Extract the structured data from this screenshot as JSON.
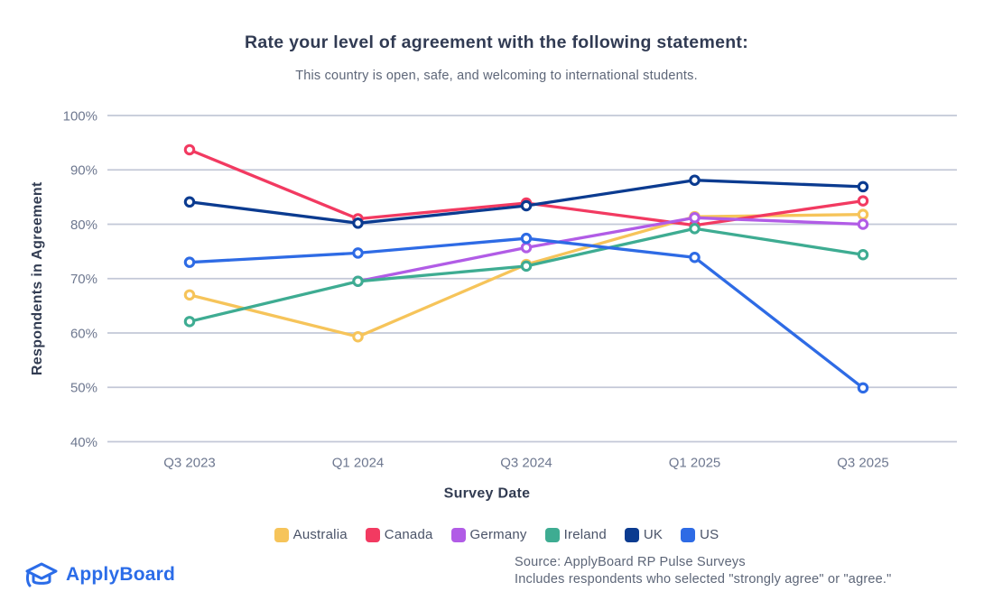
{
  "title": "Rate your level of agreement with the following statement:",
  "subtitle": "This country is open, safe, and welcoming to international students.",
  "chart_data": {
    "type": "line",
    "categories": [
      "Q3 2023",
      "Q1 2024",
      "Q3 2024",
      "Q1 2025",
      "Q3 2025"
    ],
    "series": [
      {
        "name": "Australia",
        "color": "#F6C45A",
        "values": [
          67.0,
          59.3,
          72.6,
          81.4,
          81.8
        ]
      },
      {
        "name": "Canada",
        "color": "#F23A61",
        "values": [
          93.7,
          81.0,
          83.9,
          79.8,
          84.3
        ]
      },
      {
        "name": "Germany",
        "color": "#B15CE6",
        "values": [
          null,
          69.5,
          75.7,
          81.2,
          80.0
        ]
      },
      {
        "name": "Ireland",
        "color": "#3EAC92",
        "values": [
          62.1,
          69.5,
          72.3,
          79.2,
          74.4
        ]
      },
      {
        "name": "UK",
        "color": "#0B3B90",
        "values": [
          84.1,
          80.2,
          83.4,
          88.1,
          86.9
        ]
      },
      {
        "name": "US",
        "color": "#2E6BE5",
        "values": [
          73.0,
          74.7,
          77.4,
          73.9,
          49.9
        ]
      }
    ],
    "xlabel": "Survey Date",
    "ylabel": "Respondents in Agreement",
    "ylim": [
      40,
      100
    ],
    "ytick_values": [
      100,
      90,
      80,
      70,
      60,
      50,
      40
    ],
    "ytick_suffix": "%",
    "grid": "horizontal",
    "legend_position": "bottom",
    "grid_color": "#C3C8D7",
    "tick_label_color": "#6E7890",
    "axis_title_color": "#323C52"
  },
  "footer": {
    "logo_text": "ApplyBoard",
    "logo_color": "#2b6ce8",
    "source_line1": "Source: ApplyBoard RP Pulse Surveys",
    "source_line2": "Includes respondents who selected \"strongly agree\" or \"agree.\""
  }
}
